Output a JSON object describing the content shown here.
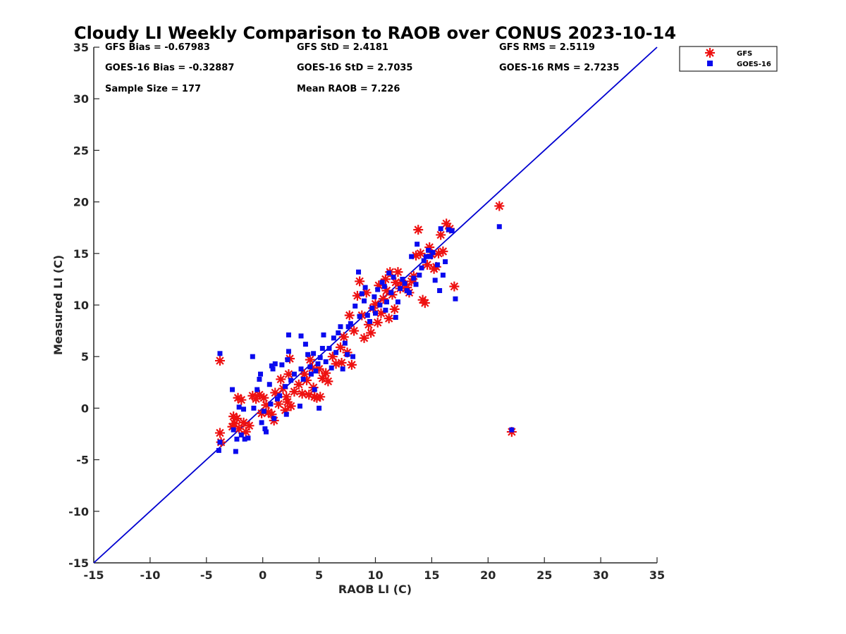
{
  "chart_data": {
    "type": "scatter",
    "title": "Cloudy LI Weekly Comparison to RAOB over CONUS 2023-10-14",
    "xlabel": "RAOB LI (C)",
    "ylabel": "Measured LI (C)",
    "xlim": [
      -15,
      35
    ],
    "ylim": [
      -15,
      35
    ],
    "xticks": [
      -15,
      -10,
      -5,
      0,
      5,
      10,
      15,
      20,
      25,
      30,
      35
    ],
    "yticks": [
      -15,
      -10,
      -5,
      0,
      5,
      10,
      15,
      20,
      25,
      30,
      35
    ],
    "grid": false,
    "legend_position": "top-right-outside",
    "reference_line": {
      "name": "1:1 line",
      "from": [
        -15,
        -15
      ],
      "to": [
        35,
        35
      ],
      "color": "#0000d0"
    },
    "stats": [
      "GFS Bias = -0.67983",
      "GFS StD = 2.4181",
      "GFS RMS = 2.5119",
      "GOES-16 Bias = -0.32887",
      "GOES-16 StD = 2.7035",
      "GOES-16 RMS = 2.7235",
      "Sample Size = 177",
      "Mean RAOB = 7.226"
    ],
    "series": [
      {
        "name": "GFS",
        "marker": "asterisk",
        "color": "#ee1111",
        "points": [
          [
            -3.8,
            4.6
          ],
          [
            -3.8,
            -2.4
          ],
          [
            -3.7,
            -3.3
          ],
          [
            -2.7,
            -1.8
          ],
          [
            -2.6,
            -0.8
          ],
          [
            -2.5,
            -1.5
          ],
          [
            -2.3,
            -1.0
          ],
          [
            -2.2,
            1.0
          ],
          [
            -2.1,
            -2.0
          ],
          [
            -1.9,
            0.8
          ],
          [
            -1.7,
            -1.4
          ],
          [
            -1.5,
            -2.3
          ],
          [
            -1.2,
            -1.7
          ],
          [
            -0.9,
            1.2
          ],
          [
            -0.6,
            0.9
          ],
          [
            -0.3,
            1.3
          ],
          [
            -0.1,
            -0.5
          ],
          [
            0.1,
            1.0
          ],
          [
            0.3,
            0.3
          ],
          [
            0.5,
            -0.4
          ],
          [
            0.8,
            -0.6
          ],
          [
            1.0,
            -1.2
          ],
          [
            1.1,
            1.5
          ],
          [
            1.4,
            0.4
          ],
          [
            1.6,
            2.8
          ],
          [
            1.8,
            1.9
          ],
          [
            2.0,
            -0.2
          ],
          [
            2.1,
            1.1
          ],
          [
            2.2,
            0.6
          ],
          [
            2.3,
            3.3
          ],
          [
            2.4,
            4.8
          ],
          [
            2.5,
            0.2
          ],
          [
            2.8,
            1.6
          ],
          [
            3.2,
            2.3
          ],
          [
            3.5,
            1.4
          ],
          [
            3.7,
            3.3
          ],
          [
            3.9,
            2.7
          ],
          [
            4.1,
            1.3
          ],
          [
            4.2,
            4.7
          ],
          [
            4.4,
            3.9
          ],
          [
            4.5,
            2.0
          ],
          [
            4.6,
            1.1
          ],
          [
            4.8,
            1.0
          ],
          [
            5.0,
            3.8
          ],
          [
            5.1,
            1.1
          ],
          [
            5.3,
            2.9
          ],
          [
            5.6,
            3.4
          ],
          [
            5.8,
            2.6
          ],
          [
            6.2,
            5.0
          ],
          [
            6.5,
            4.3
          ],
          [
            6.9,
            5.9
          ],
          [
            7.0,
            4.4
          ],
          [
            7.2,
            6.9
          ],
          [
            7.5,
            5.4
          ],
          [
            7.7,
            9.0
          ],
          [
            7.9,
            4.2
          ],
          [
            8.1,
            7.5
          ],
          [
            8.4,
            10.9
          ],
          [
            8.6,
            12.3
          ],
          [
            8.8,
            9.0
          ],
          [
            9.0,
            6.8
          ],
          [
            9.2,
            11.2
          ],
          [
            9.4,
            8.1
          ],
          [
            9.6,
            7.3
          ],
          [
            9.8,
            9.7
          ],
          [
            10.0,
            10.1
          ],
          [
            10.2,
            8.3
          ],
          [
            10.3,
            11.9
          ],
          [
            10.5,
            9.2
          ],
          [
            10.7,
            10.6
          ],
          [
            10.9,
            12.5
          ],
          [
            11.0,
            11.4
          ],
          [
            11.2,
            8.7
          ],
          [
            11.3,
            13.2
          ],
          [
            11.5,
            11.0
          ],
          [
            11.7,
            9.6
          ],
          [
            11.8,
            12.2
          ],
          [
            12.0,
            13.2
          ],
          [
            12.2,
            11.6
          ],
          [
            12.4,
            12.1
          ],
          [
            12.6,
            12.0
          ],
          [
            12.8,
            11.7
          ],
          [
            13.0,
            11.2
          ],
          [
            13.2,
            12.3
          ],
          [
            13.4,
            12.8
          ],
          [
            13.6,
            14.8
          ],
          [
            13.8,
            17.3
          ],
          [
            14.0,
            15.0
          ],
          [
            14.2,
            10.5
          ],
          [
            14.4,
            10.2
          ],
          [
            14.6,
            13.9
          ],
          [
            14.8,
            15.6
          ],
          [
            15.0,
            14.9
          ],
          [
            15.2,
            13.5
          ],
          [
            15.4,
            13.7
          ],
          [
            15.6,
            15.0
          ],
          [
            15.8,
            16.8
          ],
          [
            16.0,
            15.2
          ],
          [
            16.3,
            17.9
          ],
          [
            16.6,
            17.4
          ],
          [
            17.0,
            11.8
          ],
          [
            21.0,
            19.6
          ],
          [
            22.1,
            -2.3
          ]
        ]
      },
      {
        "name": "GOES-16",
        "marker": "square",
        "color": "#0a0aee",
        "points": [
          [
            -3.8,
            5.3
          ],
          [
            -3.8,
            -3.3
          ],
          [
            -3.9,
            -4.1
          ],
          [
            -2.7,
            1.8
          ],
          [
            -2.6,
            -2.1
          ],
          [
            -2.4,
            -4.2
          ],
          [
            -2.3,
            -3.0
          ],
          [
            -2.1,
            0.1
          ],
          [
            -1.9,
            -2.6
          ],
          [
            -1.7,
            -0.1
          ],
          [
            -1.6,
            -3.0
          ],
          [
            -1.3,
            -2.9
          ],
          [
            -0.9,
            5.0
          ],
          [
            -0.8,
            0.0
          ],
          [
            -0.5,
            1.8
          ],
          [
            -0.3,
            2.8
          ],
          [
            -0.2,
            3.3
          ],
          [
            -0.1,
            -1.4
          ],
          [
            0.1,
            -0.3
          ],
          [
            0.2,
            -2.0
          ],
          [
            0.3,
            -2.3
          ],
          [
            0.6,
            2.3
          ],
          [
            0.7,
            0.4
          ],
          [
            0.8,
            4.1
          ],
          [
            0.9,
            3.8
          ],
          [
            1.0,
            -1.0
          ],
          [
            1.1,
            4.3
          ],
          [
            1.3,
            0.9
          ],
          [
            1.5,
            1.2
          ],
          [
            1.7,
            4.2
          ],
          [
            2.0,
            2.1
          ],
          [
            2.1,
            -0.6
          ],
          [
            2.2,
            4.7
          ],
          [
            2.3,
            7.1
          ],
          [
            2.3,
            5.5
          ],
          [
            2.5,
            2.7
          ],
          [
            2.8,
            3.3
          ],
          [
            3.3,
            0.2
          ],
          [
            3.4,
            3.8
          ],
          [
            3.4,
            7.0
          ],
          [
            3.6,
            2.8
          ],
          [
            3.8,
            6.2
          ],
          [
            4.0,
            5.2
          ],
          [
            4.2,
            4.0
          ],
          [
            4.3,
            3.3
          ],
          [
            4.5,
            5.3
          ],
          [
            4.6,
            1.8
          ],
          [
            4.7,
            3.6
          ],
          [
            4.9,
            4.3
          ],
          [
            5.0,
            0.0
          ],
          [
            5.1,
            4.9
          ],
          [
            5.3,
            5.8
          ],
          [
            5.4,
            7.1
          ],
          [
            5.6,
            4.5
          ],
          [
            5.9,
            5.8
          ],
          [
            6.1,
            3.9
          ],
          [
            6.3,
            6.8
          ],
          [
            6.5,
            5.4
          ],
          [
            6.7,
            7.3
          ],
          [
            6.9,
            7.9
          ],
          [
            7.1,
            3.8
          ],
          [
            7.3,
            6.3
          ],
          [
            7.5,
            5.2
          ],
          [
            7.6,
            7.9
          ],
          [
            7.8,
            8.2
          ],
          [
            8.0,
            5.0
          ],
          [
            8.2,
            9.9
          ],
          [
            8.5,
            13.2
          ],
          [
            8.6,
            8.9
          ],
          [
            8.8,
            11.1
          ],
          [
            9.0,
            10.4
          ],
          [
            9.1,
            11.7
          ],
          [
            9.3,
            9.0
          ],
          [
            9.5,
            8.4
          ],
          [
            9.7,
            9.7
          ],
          [
            9.9,
            10.8
          ],
          [
            10.0,
            9.2
          ],
          [
            10.2,
            11.5
          ],
          [
            10.4,
            10.0
          ],
          [
            10.6,
            12.2
          ],
          [
            10.8,
            11.8
          ],
          [
            10.9,
            9.5
          ],
          [
            11.0,
            10.3
          ],
          [
            11.2,
            13.1
          ],
          [
            11.4,
            11.2
          ],
          [
            11.6,
            12.7
          ],
          [
            11.8,
            8.8
          ],
          [
            12.0,
            10.3
          ],
          [
            12.2,
            11.6
          ],
          [
            12.4,
            12.5
          ],
          [
            12.6,
            12.1
          ],
          [
            12.8,
            11.4
          ],
          [
            13.0,
            11.2
          ],
          [
            13.2,
            14.7
          ],
          [
            13.4,
            12.6
          ],
          [
            13.6,
            12.0
          ],
          [
            13.7,
            15.9
          ],
          [
            13.9,
            12.9
          ],
          [
            14.1,
            13.6
          ],
          [
            14.3,
            14.3
          ],
          [
            14.5,
            14.7
          ],
          [
            14.7,
            15.3
          ],
          [
            14.9,
            14.7
          ],
          [
            15.1,
            15.1
          ],
          [
            15.3,
            12.4
          ],
          [
            15.5,
            13.9
          ],
          [
            15.7,
            11.4
          ],
          [
            15.8,
            17.4
          ],
          [
            16.0,
            12.9
          ],
          [
            16.2,
            14.2
          ],
          [
            16.5,
            17.3
          ],
          [
            16.8,
            17.2
          ],
          [
            17.1,
            10.6
          ],
          [
            21.0,
            17.6
          ],
          [
            22.1,
            -2.1
          ]
        ]
      }
    ]
  }
}
